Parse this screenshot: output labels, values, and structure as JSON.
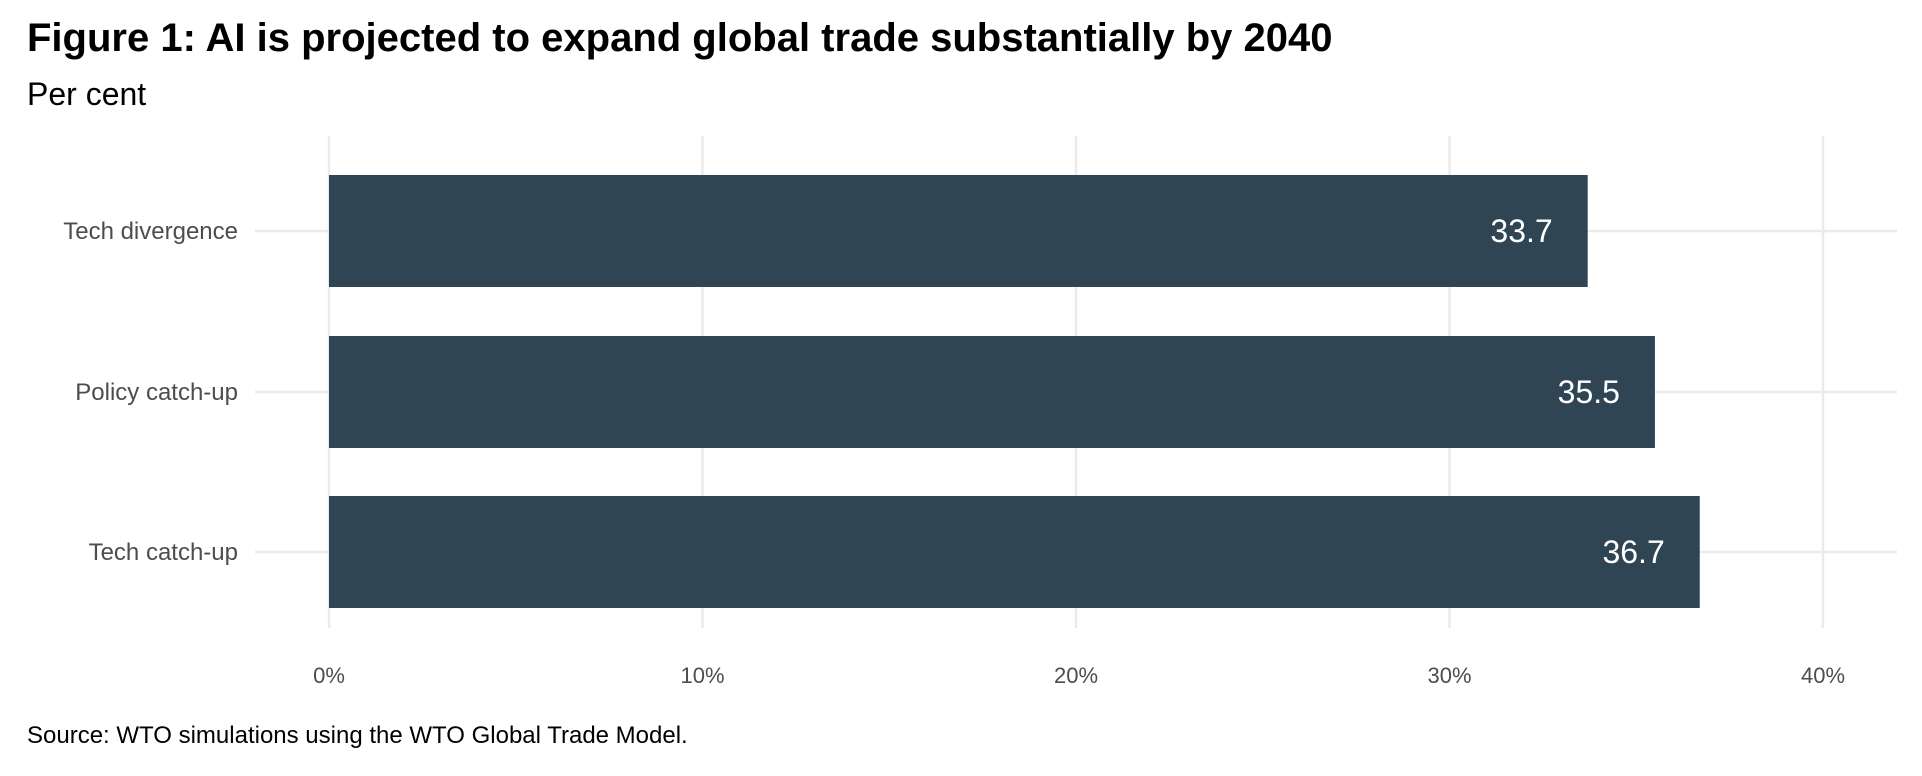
{
  "chart_data": {
    "type": "bar",
    "orientation": "horizontal",
    "title": "Figure 1: AI is projected to expand global trade substantially by 2040",
    "subtitle": "Per cent",
    "categories": [
      "Tech divergence",
      "Policy catch-up",
      "Tech catch-up"
    ],
    "values": [
      33.7,
      35.5,
      36.7
    ],
    "value_labels": [
      "33.7",
      "35.5",
      "36.7"
    ],
    "xlabel": "",
    "ylabel": "",
    "xlim": [
      0,
      40
    ],
    "x_ticks": [
      0,
      10,
      20,
      30,
      40
    ],
    "x_tick_labels": [
      "0%",
      "10%",
      "20%",
      "30%",
      "40%"
    ],
    "grid": true,
    "legend": "none",
    "bar_color": "#2F4553",
    "source": "Source: WTO simulations using the WTO Global Trade Model."
  }
}
